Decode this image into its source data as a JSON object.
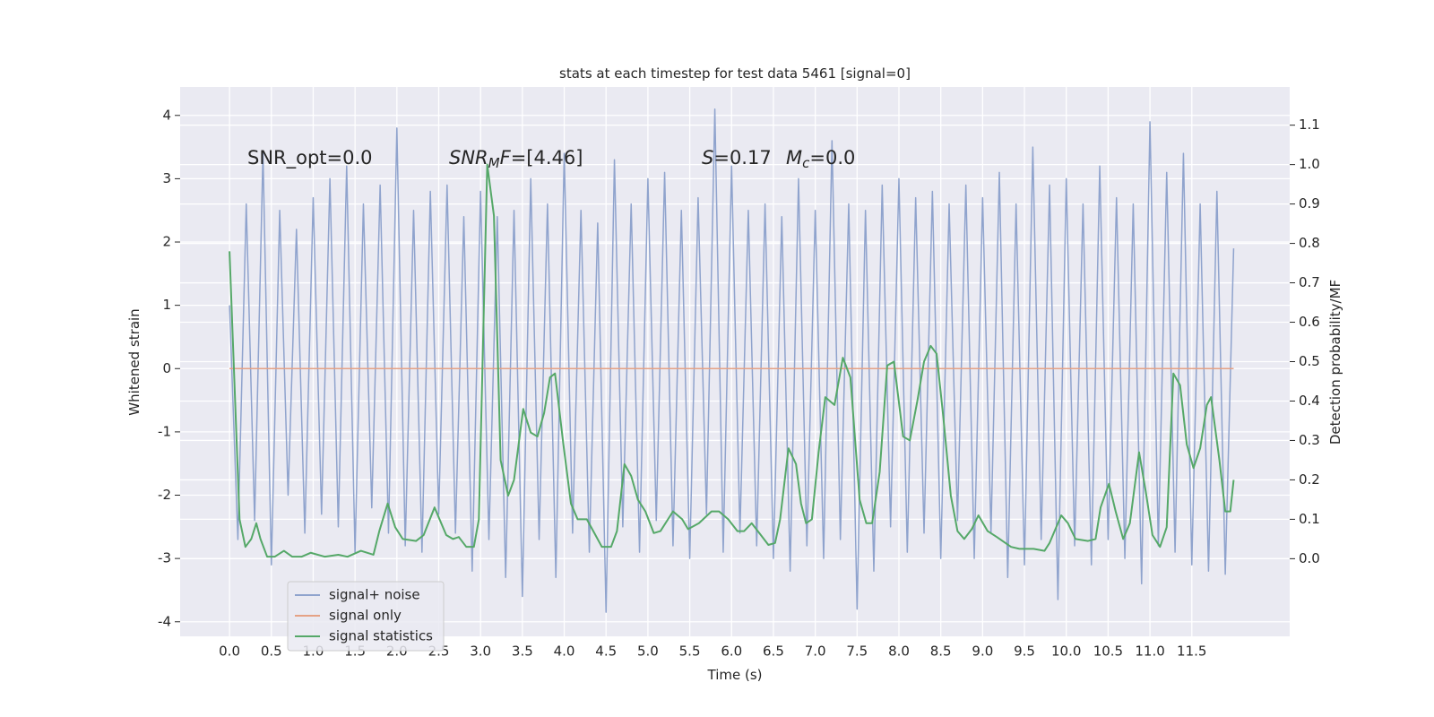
{
  "chart_data": {
    "type": "line",
    "title": "stats at each timestep for test data 5461 [signal=0]",
    "xlabel": "Time (s)",
    "ylabel": "Whitened strain",
    "y2label": "Detection probability/MF",
    "xlim": [
      -0.59,
      12.67
    ],
    "ylim": [
      -4.23,
      4.45
    ],
    "y2lim": [
      -0.197,
      1.197
    ],
    "xticks": [
      {
        "value": 0,
        "label": "0.0"
      },
      0.5,
      {
        "value": 1,
        "label": "1.0"
      },
      1.5,
      {
        "value": 2,
        "label": "2.0"
      },
      2.5,
      {
        "value": 3,
        "label": "3.0"
      },
      3.5,
      {
        "value": 4,
        "label": "4.0"
      },
      4.5,
      {
        "value": 5,
        "label": "5.0"
      },
      5.5,
      {
        "value": 6,
        "label": "6.0"
      },
      6.5,
      {
        "value": 7,
        "label": "7.0"
      },
      7.5,
      {
        "value": 8,
        "label": "8.0"
      },
      8.5,
      {
        "value": 9,
        "label": "9.0"
      },
      9.5,
      {
        "value": 10,
        "label": "10.0"
      },
      10.5,
      {
        "value": 11,
        "label": "11.0"
      },
      11.5
    ],
    "yticks": [
      -4,
      -3,
      -2,
      -1,
      0,
      1,
      2,
      3,
      4
    ],
    "y2ticks": [
      {
        "value": 0,
        "label": "0.0"
      },
      0.1,
      0.2,
      0.3,
      0.4,
      0.5,
      0.6,
      0.7,
      0.8,
      0.9,
      {
        "value": 1,
        "label": "1.0"
      },
      1.1
    ],
    "grid": true,
    "legend": "lower left",
    "annotations": [
      [
        {
          "text": "SNR_opt=0.0"
        }
      ],
      [
        {
          "text": "SNR",
          "italic": true
        },
        {
          "text": "M",
          "italic": true,
          "sub": true
        },
        {
          "text": "F",
          "italic": true
        },
        {
          "text": "=[4.46]"
        }
      ],
      [
        {
          "text": "S",
          "italic": true
        },
        {
          "text": "=0.17"
        }
      ],
      [
        {
          "text": "M",
          "italic": true
        },
        {
          "text": "c",
          "italic": true,
          "sub": true
        },
        {
          "text": "=0.0"
        }
      ]
    ],
    "series": [
      {
        "name": "signal+ noise",
        "color": "#8fa3cd",
        "x": [
          0,
          0.1,
          0.2,
          0.3,
          0.4,
          0.5,
          0.6,
          0.7,
          0.8,
          0.9,
          1,
          1.1,
          1.2,
          1.3,
          1.4,
          1.5,
          1.6,
          1.7,
          1.8,
          1.9,
          2,
          2.1,
          2.2,
          2.3,
          2.4,
          2.5,
          2.6,
          2.7,
          2.8,
          2.9,
          3,
          3.1,
          3.2,
          3.3,
          3.4,
          3.5,
          3.6,
          3.7,
          3.8,
          3.9,
          4,
          4.1,
          4.2,
          4.3,
          4.4,
          4.5,
          4.6,
          4.7,
          4.8,
          4.9,
          5,
          5.1,
          5.2,
          5.3,
          5.4,
          5.5,
          5.6,
          5.7,
          5.8,
          5.9,
          6,
          6.1,
          6.2,
          6.3,
          6.4,
          6.5,
          6.6,
          6.7,
          6.8,
          6.9,
          7,
          7.1,
          7.2,
          7.3,
          7.4,
          7.5,
          7.6,
          7.7,
          7.8,
          7.9,
          8,
          8.1,
          8.2,
          8.3,
          8.4,
          8.5,
          8.6,
          8.7,
          8.8,
          8.9,
          9,
          9.1,
          9.2,
          9.3,
          9.4,
          9.5,
          9.6,
          9.7,
          9.8,
          9.9,
          10,
          10.1,
          10.2,
          10.3,
          10.4,
          10.5,
          10.6,
          10.7,
          10.8,
          10.9,
          11,
          11.1,
          11.2,
          11.3,
          11.4,
          11.5,
          11.6,
          11.7,
          11.8,
          11.9,
          12
        ],
        "values": [
          1.0,
          -2.7,
          2.6,
          -2.4,
          3.4,
          -3.1,
          2.5,
          -2.0,
          2.2,
          -2.6,
          2.7,
          -2.3,
          3.0,
          -2.5,
          3.2,
          -2.9,
          2.6,
          -2.2,
          2.9,
          -2.6,
          3.8,
          -2.8,
          2.5,
          -2.9,
          2.8,
          -2.3,
          2.9,
          -2.6,
          2.4,
          -3.2,
          2.8,
          -2.7,
          2.4,
          -3.3,
          2.5,
          -3.6,
          3.0,
          -2.7,
          2.6,
          -3.3,
          3.4,
          -2.6,
          2.5,
          -2.9,
          2.3,
          -3.85,
          3.3,
          -2.5,
          2.6,
          -2.9,
          3.0,
          -2.4,
          3.1,
          -2.8,
          2.5,
          -3.0,
          2.7,
          -2.3,
          4.1,
          -2.9,
          3.2,
          -2.6,
          2.5,
          -2.8,
          2.6,
          -3.0,
          2.4,
          -3.2,
          3.0,
          -2.8,
          2.5,
          -3.0,
          3.6,
          -2.7,
          2.6,
          -3.8,
          2.5,
          -3.2,
          2.9,
          -2.5,
          3.0,
          -2.9,
          2.7,
          -2.6,
          2.8,
          -3.0,
          2.6,
          -2.4,
          2.9,
          -3.0,
          2.7,
          -2.6,
          3.1,
          -3.3,
          2.6,
          -3.1,
          3.5,
          -2.7,
          2.9,
          -3.65,
          3.0,
          -2.8,
          2.6,
          -3.1,
          3.2,
          -2.7,
          2.7,
          -3.0,
          2.6,
          -3.4,
          3.9,
          -2.8,
          3.1,
          -2.9,
          3.4,
          -3.1,
          2.6,
          -3.2,
          2.8,
          -3.25,
          1.9
        ]
      },
      {
        "name": "signal only",
        "color": "#e5a285",
        "x": [
          0,
          12
        ],
        "values": [
          0,
          0
        ]
      },
      {
        "name": "signal statistics",
        "color": "#55a868",
        "axis": "y2",
        "x": [
          0,
          0.12,
          0.19,
          0.26,
          0.32,
          0.37,
          0.45,
          0.54,
          0.65,
          0.75,
          0.86,
          0.97,
          1.14,
          1.3,
          1.41,
          1.57,
          1.72,
          1.79,
          1.89,
          1.98,
          2.07,
          2.23,
          2.32,
          2.45,
          2.59,
          2.67,
          2.74,
          2.83,
          2.92,
          2.98,
          3.08,
          3.16,
          3.24,
          3.33,
          3.4,
          3.51,
          3.6,
          3.68,
          3.76,
          3.83,
          3.89,
          3.99,
          4.08,
          4.16,
          4.27,
          4.36,
          4.45,
          4.56,
          4.63,
          4.72,
          4.8,
          4.88,
          4.97,
          5.07,
          5.15,
          5.3,
          5.41,
          5.48,
          5.61,
          5.76,
          5.85,
          5.96,
          6.07,
          6.15,
          6.24,
          6.35,
          6.44,
          6.52,
          6.58,
          6.68,
          6.77,
          6.83,
          6.89,
          6.96,
          7.04,
          7.12,
          7.23,
          7.33,
          7.42,
          7.53,
          7.61,
          7.68,
          7.77,
          7.86,
          7.94,
          8.05,
          8.13,
          8.22,
          8.3,
          8.38,
          8.45,
          8.53,
          8.62,
          8.7,
          8.78,
          8.87,
          8.95,
          9.06,
          9.17,
          9.34,
          9.44,
          9.61,
          9.74,
          9.8,
          9.94,
          10.02,
          10.11,
          10.26,
          10.35,
          10.41,
          10.51,
          10.59,
          10.68,
          10.76,
          10.87,
          10.95,
          11.03,
          11.12,
          11.2,
          11.28,
          11.36,
          11.44,
          11.52,
          11.6,
          11.68,
          11.73,
          11.83,
          11.9,
          11.96,
          12.0
        ],
        "values": [
          0.78,
          0.1,
          0.03,
          0.05,
          0.09,
          0.05,
          0.005,
          0.005,
          0.02,
          0.005,
          0.005,
          0.015,
          0.005,
          0.01,
          0.005,
          0.02,
          0.01,
          0.07,
          0.14,
          0.08,
          0.05,
          0.045,
          0.06,
          0.13,
          0.06,
          0.05,
          0.055,
          0.03,
          0.03,
          0.1,
          1.0,
          0.87,
          0.25,
          0.16,
          0.2,
          0.38,
          0.32,
          0.31,
          0.37,
          0.46,
          0.47,
          0.29,
          0.14,
          0.1,
          0.1,
          0.065,
          0.03,
          0.03,
          0.07,
          0.24,
          0.21,
          0.15,
          0.12,
          0.065,
          0.07,
          0.12,
          0.1,
          0.075,
          0.09,
          0.12,
          0.12,
          0.1,
          0.07,
          0.07,
          0.09,
          0.06,
          0.035,
          0.04,
          0.1,
          0.28,
          0.24,
          0.14,
          0.09,
          0.1,
          0.27,
          0.41,
          0.39,
          0.51,
          0.46,
          0.15,
          0.09,
          0.09,
          0.22,
          0.49,
          0.5,
          0.31,
          0.3,
          0.4,
          0.5,
          0.54,
          0.52,
          0.36,
          0.16,
          0.07,
          0.05,
          0.075,
          0.11,
          0.07,
          0.055,
          0.03,
          0.025,
          0.025,
          0.02,
          0.04,
          0.11,
          0.09,
          0.05,
          0.045,
          0.05,
          0.13,
          0.19,
          0.12,
          0.05,
          0.09,
          0.27,
          0.17,
          0.06,
          0.03,
          0.08,
          0.47,
          0.44,
          0.29,
          0.23,
          0.28,
          0.39,
          0.41,
          0.25,
          0.12,
          0.12,
          0.2
        ]
      }
    ]
  }
}
